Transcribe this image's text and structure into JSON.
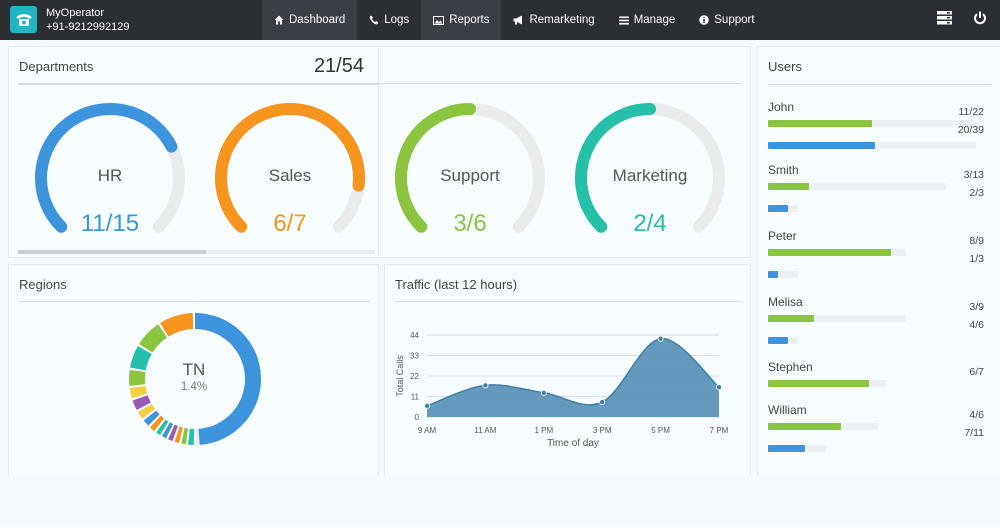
{
  "brand": {
    "name": "MyOperator",
    "phone": "+91-9212992129"
  },
  "nav": [
    {
      "label": "Dashboard",
      "icon": "home-icon",
      "active": true
    },
    {
      "label": "Logs",
      "icon": "phone-icon",
      "active": false
    },
    {
      "label": "Reports",
      "icon": "image-icon",
      "active": true
    },
    {
      "label": "Remarketing",
      "icon": "megaphone-icon",
      "active": false
    },
    {
      "label": "Manage",
      "icon": "menu-icon",
      "active": false
    },
    {
      "label": "Support",
      "icon": "info-icon",
      "active": false
    }
  ],
  "departments": {
    "title": "Departments",
    "total": "21/54",
    "items": [
      {
        "name": "HR",
        "value": "11/15",
        "fraction": 0.733,
        "color": "#3d94dd"
      },
      {
        "name": "Sales",
        "value": "6/7",
        "fraction": 0.857,
        "color": "#f7941d"
      },
      {
        "name": "Support",
        "value": "3/6",
        "fraction": 0.5,
        "color": "#8bc43f"
      },
      {
        "name": "Marketing",
        "value": "2/4",
        "fraction": 0.5,
        "color": "#26bfa8"
      }
    ]
  },
  "regions": {
    "title": "Regions",
    "center_label": "TN",
    "center_value": "1.4%"
  },
  "traffic": {
    "title": "Traffic (last 12 hours)",
    "chart_data": {
      "type": "area",
      "title": "Traffic (last 12 hours)",
      "xlabel": "Time of day",
      "ylabel": "Total Calls",
      "x": [
        "9 AM",
        "11 AM",
        "1 PM",
        "3 PM",
        "5 PM",
        "7 PM"
      ],
      "y_ticks": [
        0,
        11,
        22,
        33,
        44
      ],
      "ylim": [
        0,
        44
      ],
      "series": [
        {
          "values": [
            6,
            17,
            13,
            8,
            42,
            16
          ]
        }
      ],
      "color": "#5b93b8",
      "grid": true
    }
  },
  "users": {
    "title": "Users",
    "items": [
      {
        "name": "John",
        "rows": [
          {
            "count": "11/22",
            "fraction": 0.5,
            "color": "green"
          },
          {
            "count": "20/39",
            "fraction": 0.513,
            "color": "blue"
          }
        ]
      },
      {
        "name": "Smith",
        "rows": [
          {
            "count": "3/13",
            "fraction": 0.23,
            "color": "green"
          },
          {
            "count": "2/3",
            "fraction": 0.667,
            "color": "blue"
          }
        ]
      },
      {
        "name": "Peter",
        "rows": [
          {
            "count": "8/9",
            "fraction": 0.89,
            "color": "green"
          },
          {
            "count": "1/3",
            "fraction": 0.333,
            "color": "blue"
          }
        ]
      },
      {
        "name": "Melisa",
        "rows": [
          {
            "count": "3/9",
            "fraction": 0.333,
            "color": "green"
          },
          {
            "count": "4/6",
            "fraction": 0.667,
            "color": "blue"
          }
        ]
      },
      {
        "name": "Stephen",
        "rows": [
          {
            "count": "6/7",
            "fraction": 0.857,
            "color": "green"
          }
        ]
      },
      {
        "name": "William",
        "rows": [
          {
            "count": "4/6",
            "fraction": 0.667,
            "color": "green"
          },
          {
            "count": "7/11",
            "fraction": 0.636,
            "color": "blue"
          }
        ]
      }
    ]
  }
}
